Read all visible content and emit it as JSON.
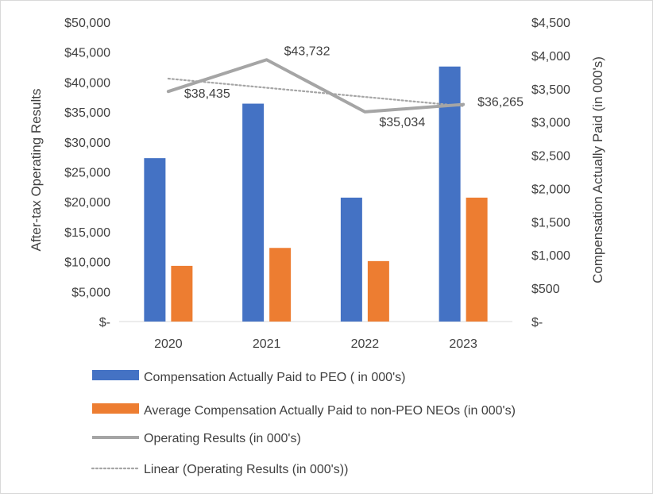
{
  "chart_data": {
    "type": "bar",
    "categories": [
      "2020",
      "2021",
      "2022",
      "2023"
    ],
    "series": [
      {
        "name": "Compensation Actually Paid to PEO ( in 000's)",
        "type": "bar",
        "axis": "left",
        "color": "#4472c4",
        "values": [
          27300,
          36400,
          20700,
          42600
        ]
      },
      {
        "name": "Average Compensation Actually Paid to non-PEO NEOs  (in 000's)",
        "type": "bar",
        "axis": "left",
        "color": "#ed7d31",
        "values": [
          9300,
          12300,
          10100,
          20700
        ]
      },
      {
        "name": "Operating Results (in 000's)",
        "type": "line",
        "axis": "left",
        "color": "#a5a5a5",
        "values": [
          38435,
          43732,
          35034,
          36265
        ],
        "labels": [
          "$38,435",
          "$43,732",
          "$35,034",
          "$36,265"
        ]
      },
      {
        "name": "Linear (Operating Results (in 000's))",
        "type": "trendline",
        "axis": "left",
        "color": "#a5a5a5",
        "style": "dotted",
        "values": [
          40580,
          39052,
          37524,
          35996
        ]
      }
    ],
    "yleft": {
      "label": "After-tax Operating Results",
      "min": 0,
      "max": 50000,
      "ticks": [
        "$-",
        "$5,000",
        "$10,000",
        "$15,000",
        "$20,000",
        "$25,000",
        "$30,000",
        "$35,000",
        "$40,000",
        "$45,000",
        "$50,000"
      ]
    },
    "yright": {
      "label": "Compensation Actually Paid (in 000's)",
      "min": 0,
      "max": 4500,
      "ticks": [
        "$-",
        "$500",
        "$1,000",
        "$1,500",
        "$2,000",
        "$2,500",
        "$3,000",
        "$3,500",
        "$4,000",
        "$4,500"
      ]
    },
    "grid": false,
    "legend": "bottom"
  }
}
